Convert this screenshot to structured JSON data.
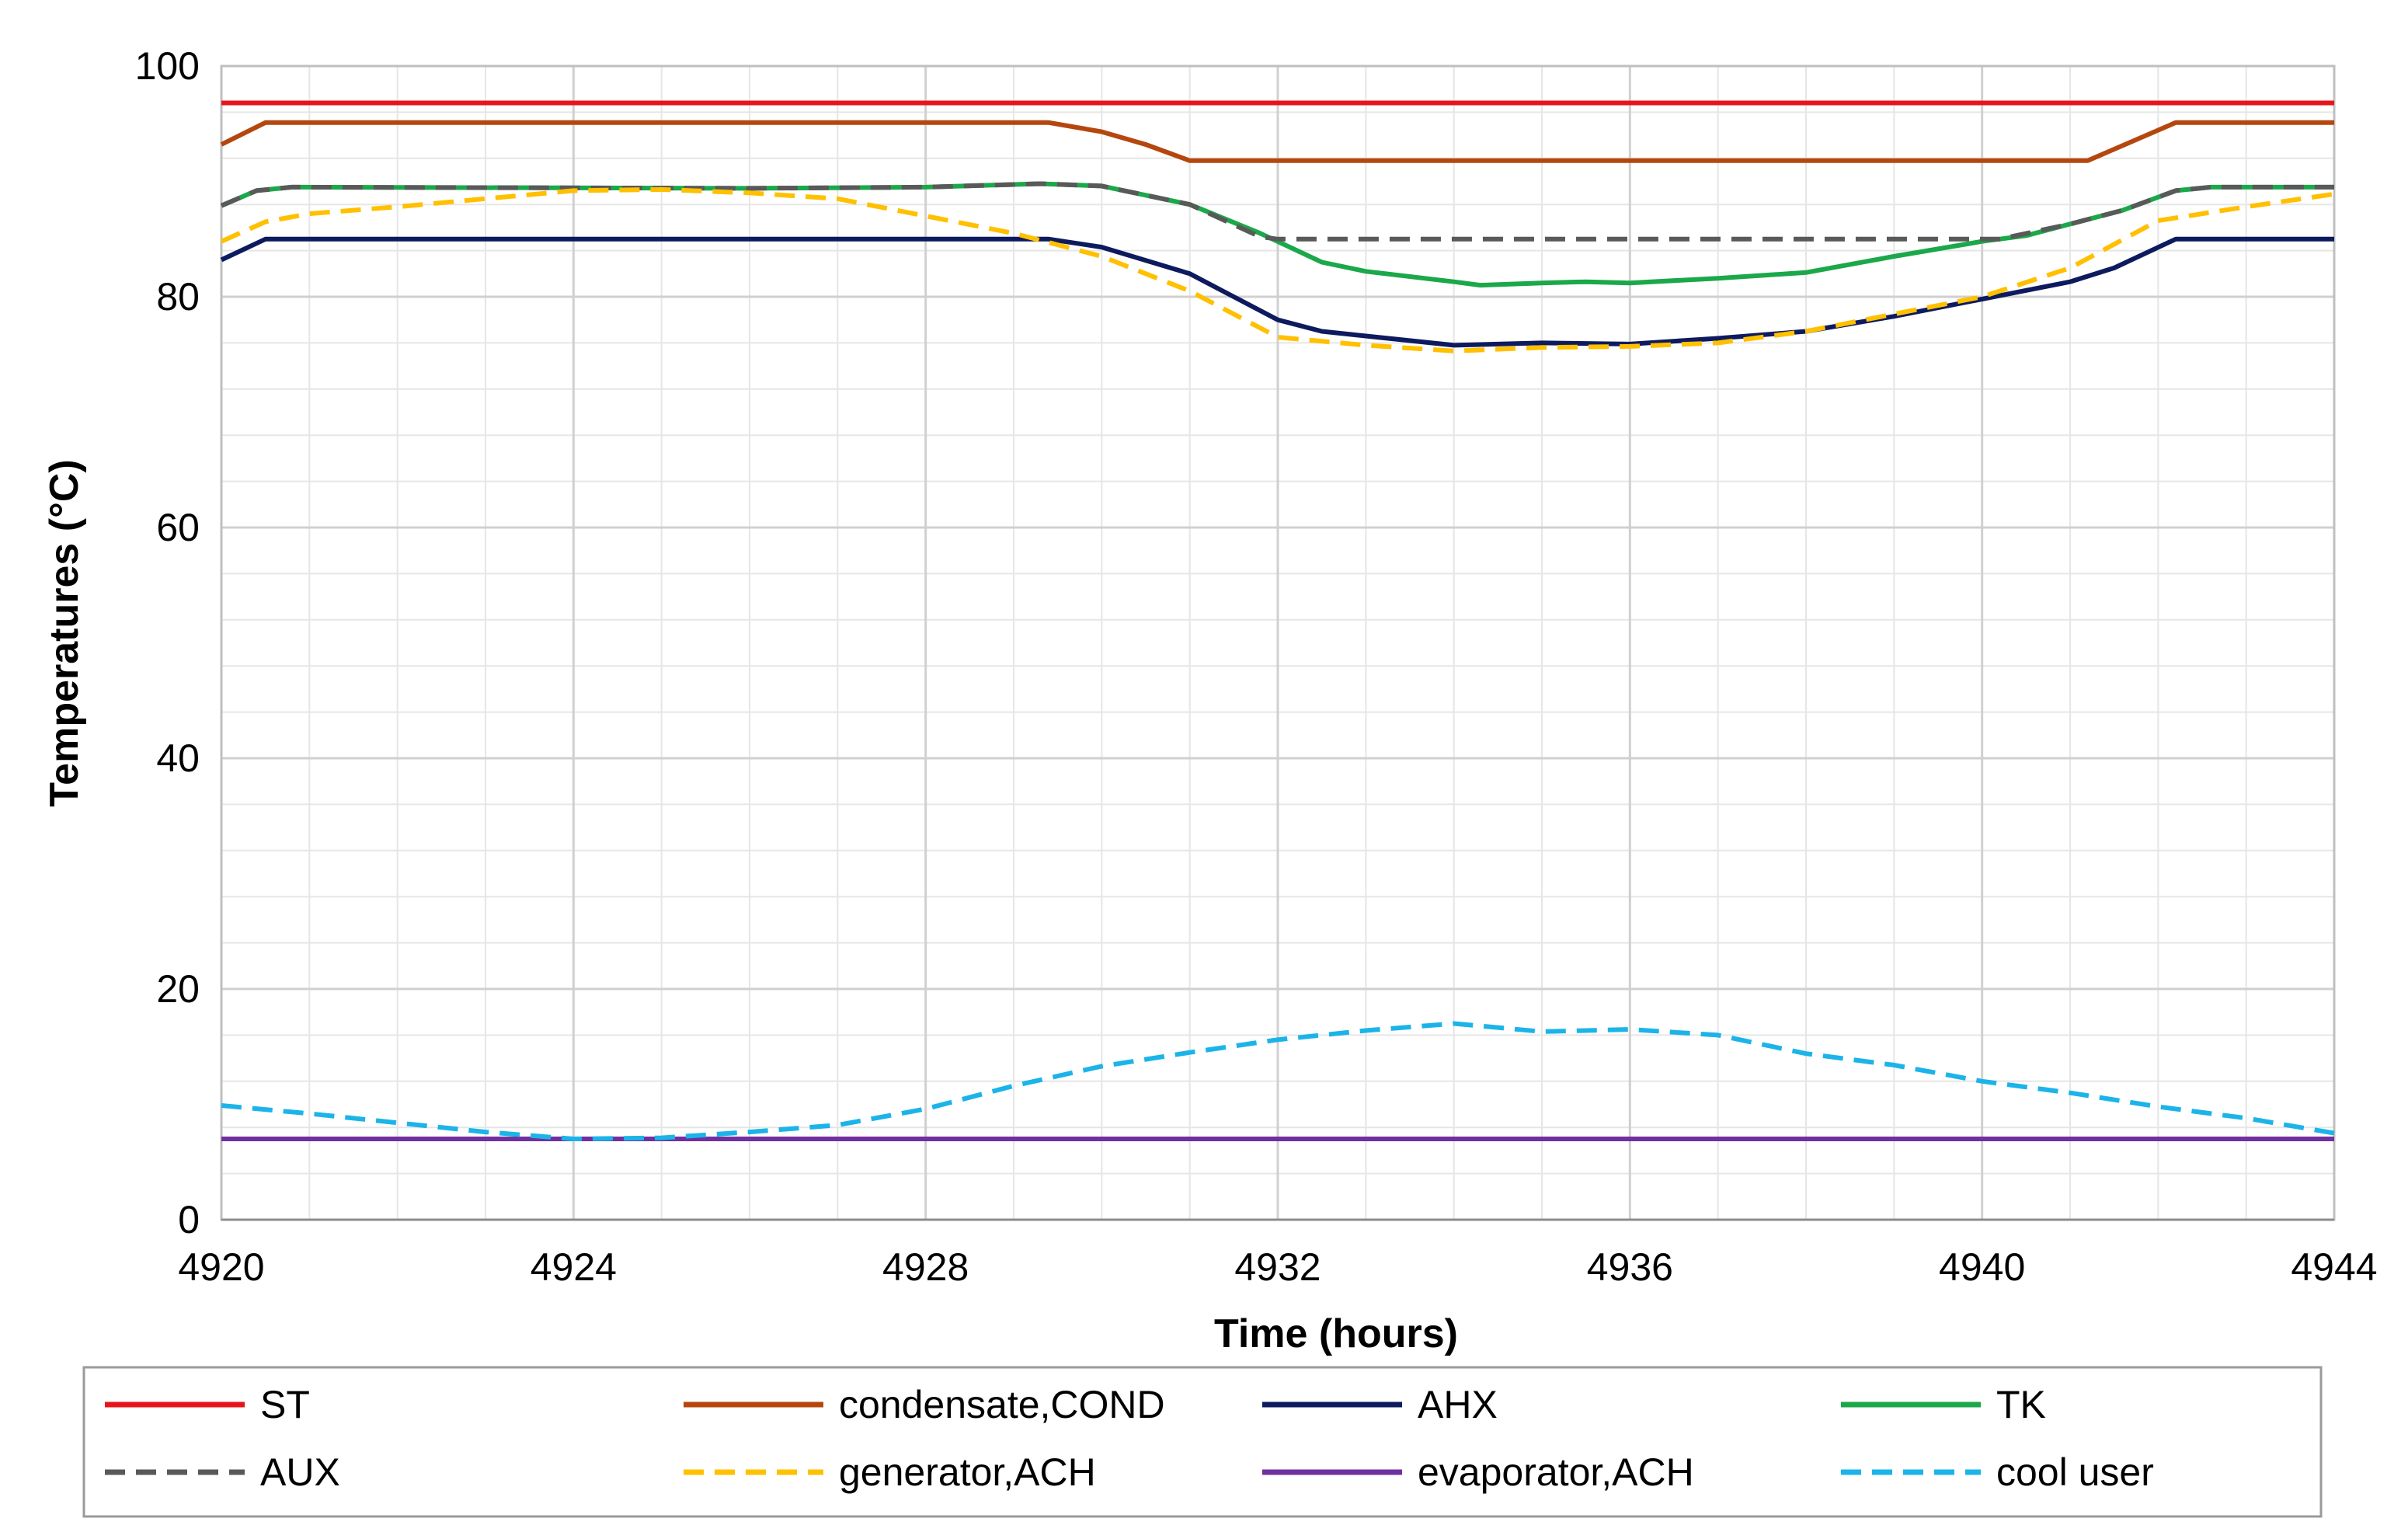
{
  "chart_data": {
    "type": "line",
    "title": "",
    "xlabel": "Time (hours)",
    "ylabel": "Temperatures (°C)",
    "xlim": [
      4920,
      4944
    ],
    "ylim": [
      0,
      100
    ],
    "x_ticks": [
      4920,
      4924,
      4928,
      4932,
      4936,
      4940,
      4944
    ],
    "x_tick_labels": [
      "4920",
      "4924",
      "4928",
      "4932",
      "4936",
      "4940",
      "4944"
    ],
    "y_ticks": [
      0,
      20,
      40,
      60,
      80,
      100
    ],
    "y_tick_labels": [
      "0",
      "20",
      "40",
      "60",
      "80",
      "100"
    ],
    "grid": true,
    "minor_grid": true,
    "legend_position": "bottom",
    "series": [
      {
        "name": "ST",
        "color": "#e8141b",
        "dash": "solid",
        "points": [
          [
            4920,
            96.8
          ],
          [
            4944,
            96.8
          ]
        ]
      },
      {
        "name": "condensate,COND",
        "color": "#b5470e",
        "dash": "solid",
        "points": [
          [
            4920,
            93.2
          ],
          [
            4920.5,
            95.1
          ],
          [
            4929.4,
            95.1
          ],
          [
            4930,
            94.3
          ],
          [
            4930.5,
            93.2
          ],
          [
            4931,
            91.8
          ],
          [
            4941.2,
            91.8
          ],
          [
            4942.2,
            95.1
          ],
          [
            4944,
            95.1
          ]
        ]
      },
      {
        "name": "AHX",
        "color": "#0d1b5e",
        "dash": "solid",
        "points": [
          [
            4920,
            83.2
          ],
          [
            4920.5,
            85
          ],
          [
            4929.4,
            85
          ],
          [
            4930,
            84.3
          ],
          [
            4931,
            82
          ],
          [
            4931.5,
            80
          ],
          [
            4932,
            78
          ],
          [
            4932.5,
            77
          ],
          [
            4933,
            76.6
          ],
          [
            4934,
            75.8
          ],
          [
            4935,
            76
          ],
          [
            4936,
            75.9
          ],
          [
            4937,
            76.4
          ],
          [
            4938,
            77
          ],
          [
            4939,
            78.3
          ],
          [
            4940,
            79.8
          ],
          [
            4941,
            81.3
          ],
          [
            4941.5,
            82.5
          ],
          [
            4942.2,
            85
          ],
          [
            4944,
            85
          ]
        ]
      },
      {
        "name": "TK",
        "color": "#1ba84a",
        "dash": "solid",
        "points": [
          [
            4920,
            87.9
          ],
          [
            4920.4,
            89.2
          ],
          [
            4920.8,
            89.5
          ],
          [
            4926,
            89.4
          ],
          [
            4928,
            89.5
          ],
          [
            4929.3,
            89.8
          ],
          [
            4930,
            89.6
          ],
          [
            4931,
            88
          ],
          [
            4931.8,
            85.5
          ],
          [
            4932.5,
            83
          ],
          [
            4933,
            82.2
          ],
          [
            4934,
            81.3
          ],
          [
            4934.3,
            81
          ],
          [
            4935,
            81.2
          ],
          [
            4935.5,
            81.3
          ],
          [
            4936,
            81.2
          ],
          [
            4937,
            81.6
          ],
          [
            4938,
            82.1
          ],
          [
            4939,
            83.5
          ],
          [
            4940,
            84.8
          ],
          [
            4940.5,
            85.3
          ],
          [
            4941,
            86.3
          ],
          [
            4941.6,
            87.5
          ],
          [
            4942.2,
            89.2
          ],
          [
            4942.6,
            89.5
          ],
          [
            4944,
            89.5
          ]
        ]
      },
      {
        "name": "AUX",
        "color": "#595959",
        "dash": "dashed",
        "points": [
          [
            4920,
            87.9
          ],
          [
            4920.4,
            89.2
          ],
          [
            4920.8,
            89.5
          ],
          [
            4926,
            89.4
          ],
          [
            4928,
            89.5
          ],
          [
            4929.3,
            89.8
          ],
          [
            4930,
            89.6
          ],
          [
            4931,
            88
          ],
          [
            4931.8,
            85.2
          ],
          [
            4932,
            85
          ],
          [
            4940.2,
            85
          ],
          [
            4941,
            86.3
          ],
          [
            4941.6,
            87.5
          ],
          [
            4942.2,
            89.2
          ],
          [
            4942.6,
            89.5
          ],
          [
            4944,
            89.5
          ]
        ]
      },
      {
        "name": "generator,ACH",
        "color": "#ffc000",
        "dash": "dashed",
        "points": [
          [
            4920,
            84.8
          ],
          [
            4920.5,
            86.5
          ],
          [
            4921,
            87.2
          ],
          [
            4922,
            87.8
          ],
          [
            4923,
            88.5
          ],
          [
            4924,
            89.2
          ],
          [
            4925,
            89.3
          ],
          [
            4926,
            89
          ],
          [
            4927,
            88.5
          ],
          [
            4928,
            87
          ],
          [
            4929,
            85.5
          ],
          [
            4930,
            83.5
          ],
          [
            4931,
            80.5
          ],
          [
            4932,
            76.5
          ],
          [
            4933,
            75.8
          ],
          [
            4934,
            75.3
          ],
          [
            4935,
            75.6
          ],
          [
            4936,
            75.7
          ],
          [
            4937,
            76
          ],
          [
            4938,
            77
          ],
          [
            4939,
            78.5
          ],
          [
            4940,
            80
          ],
          [
            4941,
            82.5
          ],
          [
            4942,
            86.6
          ],
          [
            4943,
            87.8
          ],
          [
            4944,
            88.9
          ]
        ]
      },
      {
        "name": "evaporator,ACH",
        "color": "#7030a0",
        "dash": "solid",
        "points": [
          [
            4920,
            7
          ],
          [
            4944,
            7
          ]
        ]
      },
      {
        "name": "cool user",
        "color": "#1cb4e8",
        "dash": "dashed",
        "points": [
          [
            4920,
            9.9
          ],
          [
            4921,
            9.2
          ],
          [
            4922,
            8.4
          ],
          [
            4923,
            7.6
          ],
          [
            4924,
            7
          ],
          [
            4925,
            7.1
          ],
          [
            4926,
            7.6
          ],
          [
            4927,
            8.2
          ],
          [
            4928,
            9.6
          ],
          [
            4929,
            11.6
          ],
          [
            4930,
            13.3
          ],
          [
            4931,
            14.5
          ],
          [
            4932,
            15.6
          ],
          [
            4933,
            16.4
          ],
          [
            4934,
            17
          ],
          [
            4935,
            16.3
          ],
          [
            4936,
            16.5
          ],
          [
            4937,
            16
          ],
          [
            4938,
            14.4
          ],
          [
            4939,
            13.4
          ],
          [
            4940,
            12
          ],
          [
            4941,
            11
          ],
          [
            4942,
            9.8
          ],
          [
            4943,
            8.8
          ],
          [
            4944,
            7.5
          ]
        ]
      }
    ]
  }
}
